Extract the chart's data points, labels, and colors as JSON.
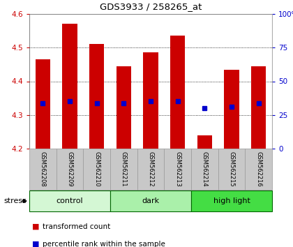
{
  "title": "GDS3933 / 258265_at",
  "samples": [
    "GSM562208",
    "GSM562209",
    "GSM562210",
    "GSM562211",
    "GSM562212",
    "GSM562213",
    "GSM562214",
    "GSM562215",
    "GSM562216"
  ],
  "transformed_counts": [
    4.465,
    4.57,
    4.51,
    4.445,
    4.485,
    4.535,
    4.24,
    4.435,
    4.445
  ],
  "percentile_ranks": [
    4.335,
    4.34,
    4.335,
    4.335,
    4.34,
    4.34,
    4.32,
    4.325,
    4.335
  ],
  "ylim_left": [
    4.2,
    4.6
  ],
  "ylim_right": [
    0,
    100
  ],
  "yticks_left": [
    4.2,
    4.3,
    4.4,
    4.5,
    4.6
  ],
  "yticks_right": [
    0,
    25,
    50,
    75,
    100
  ],
  "ytick_labels_right": [
    "0",
    "25",
    "50",
    "75",
    "100%"
  ],
  "grid_yticks": [
    4.3,
    4.4,
    4.5
  ],
  "groups": [
    {
      "label": "control",
      "start": 0,
      "end": 3,
      "color": "#d4f7d4"
    },
    {
      "label": "dark",
      "start": 3,
      "end": 6,
      "color": "#aaf0aa"
    },
    {
      "label": "high light",
      "start": 6,
      "end": 9,
      "color": "#44dd44"
    }
  ],
  "bar_color": "#cc0000",
  "percentile_color": "#0000cc",
  "bar_width": 0.55,
  "left_tick_color": "#cc0000",
  "right_tick_color": "#0000cc",
  "background_sample": "#c8c8c8",
  "sample_edge_color": "#999999",
  "group_edge_color": "#006600",
  "stress_label": "stress",
  "legend_items": [
    {
      "color": "#cc0000",
      "label": "transformed count"
    },
    {
      "color": "#0000cc",
      "label": "percentile rank within the sample"
    }
  ]
}
